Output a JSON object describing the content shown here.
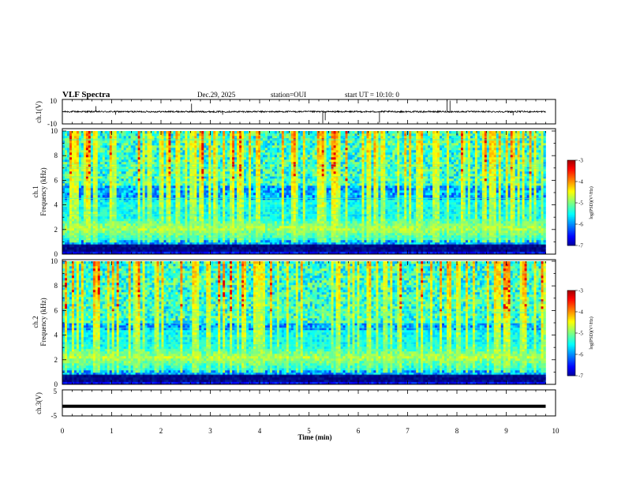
{
  "header": {
    "title": "VLF Spectra",
    "date": "Dec.29, 2025",
    "station": "station=OUI",
    "start": "start UT = 10:10: 0"
  },
  "chart_data": [
    {
      "id": "ch1-waveform",
      "type": "line",
      "ylabel": "ch.1(V)",
      "ylim": [
        -10,
        10
      ],
      "yticks": [
        10,
        -10
      ],
      "xlim": [
        0,
        10
      ],
      "baseline": 0,
      "noise_amplitude": 0.6,
      "spikes": [
        {
          "t": 0.68,
          "v": 4.5
        },
        {
          "t": 1.08,
          "v": -2.5
        },
        {
          "t": 2.62,
          "v": 6.5
        },
        {
          "t": 3.25,
          "v": -2.5
        },
        {
          "t": 5.28,
          "v": -9.5
        },
        {
          "t": 5.33,
          "v": -7.0
        },
        {
          "t": 6.43,
          "v": -9.0
        },
        {
          "t": 7.8,
          "v": 9.5
        },
        {
          "t": 7.86,
          "v": 9.0
        },
        {
          "t": 9.14,
          "v": -3.0
        }
      ]
    },
    {
      "id": "ch1-spectrogram",
      "type": "heatmap",
      "ylabel": "ch.1\nFrequency (kHz)",
      "ylabel_channel": "ch.1",
      "ylabel_axis": "Frequency (kHz)",
      "ylim": [
        0,
        10
      ],
      "yticks": [
        0,
        2,
        4,
        6,
        8,
        10
      ],
      "xlim": [
        0,
        9.8
      ],
      "colorbar": {
        "label": "log(PSD)(V²/Hz)",
        "range": [
          -7,
          -3
        ],
        "ticks": [
          -3,
          -4,
          -5,
          -6,
          -7
        ]
      },
      "bands_kHz": {
        "hiss_center": 2.1,
        "hiss_width": 0.45,
        "floor_low": 0.8,
        "floor_high": 5.5
      },
      "sferic_density": 0.45
    },
    {
      "id": "ch2-spectrogram",
      "type": "heatmap",
      "ylabel_channel": "ch.2",
      "ylabel_axis": "Frequency (kHz)",
      "ylim": [
        0,
        10
      ],
      "yticks": [
        0,
        2,
        4,
        6,
        8,
        10
      ],
      "xlim": [
        0,
        9.8
      ],
      "colorbar": {
        "label": "log(PSD)(V²/Hz)",
        "range": [
          -7,
          -3
        ],
        "ticks": [
          -3,
          -4,
          -5,
          -6,
          -7
        ]
      },
      "bands_kHz": {
        "hiss_center": 2.2,
        "hiss_width": 0.55,
        "floor_low": 0.8,
        "floor_high": 5.0
      },
      "sferic_density": 0.38
    },
    {
      "id": "ch3-waveform",
      "type": "line",
      "ylabel": "ch.3(V)",
      "ylim": [
        -5,
        5
      ],
      "yticks": [
        5,
        -5
      ],
      "xlim": [
        0,
        9.8
      ],
      "baseline": -1.3,
      "noise_amplitude": 0.05,
      "spikes": []
    }
  ],
  "xaxis": {
    "label": "Time (min)",
    "range": [
      0,
      10
    ],
    "ticks": [
      "0",
      "1",
      "2",
      "3",
      "4",
      "5",
      "6",
      "7",
      "8",
      "9",
      "10"
    ]
  },
  "colors": {
    "jet": [
      "#00007f",
      "#0000ff",
      "#007fff",
      "#00ffff",
      "#7fff7f",
      "#ffff00",
      "#ff7f00",
      "#ff0000",
      "#7f0000"
    ]
  }
}
